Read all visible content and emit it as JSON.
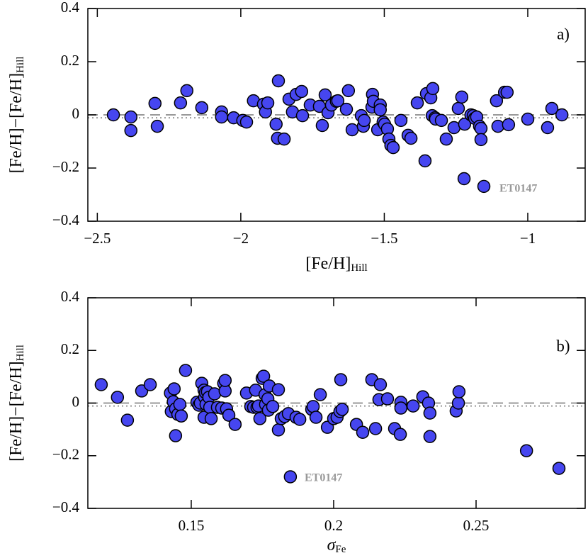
{
  "chart_data": [
    {
      "type": "scatter",
      "panel_label": "a)",
      "annotation": "ET0147",
      "xlabel": {
        "text": "[Fe/H]",
        "sub": "Hill"
      },
      "ylabel": {
        "text": "[Fe/H]−[Fe/H]",
        "sub": "Hill"
      },
      "color": "#4646f0",
      "edgecolor": "#000000",
      "xlim": [
        -2.533,
        -0.8
      ],
      "ylim": [
        -0.4,
        0.4
      ],
      "xticks": [
        {
          "value": -2.5,
          "label": "−2.5"
        },
        {
          "value": -2,
          "label": "−2"
        },
        {
          "value": -1.5,
          "label": "−1.5"
        },
        {
          "value": -1,
          "label": "−1"
        }
      ],
      "yticks": [
        {
          "value": -0.4,
          "label": "−0.4"
        },
        {
          "value": -0.2,
          "label": "−0.2"
        },
        0,
        0.2,
        0.4
      ],
      "hlines": [
        {
          "y": 0,
          "style": "dashed",
          "color": "#999999"
        },
        {
          "y": -0.011,
          "style": "dotted",
          "color": "#999999"
        }
      ],
      "x": [
        -2.444,
        -2.383,
        -2.383,
        -2.299,
        -2.291,
        -2.21,
        -2.188,
        -2.136,
        -2.067,
        -2.067,
        -2.025,
        -1.993,
        -1.98,
        -1.956,
        -1.921,
        -1.914,
        -1.906,
        -1.877,
        -1.872,
        -1.869,
        -1.849,
        -1.832,
        -1.82,
        -1.807,
        -1.788,
        -1.785,
        -1.758,
        -1.726,
        -1.716,
        -1.706,
        -1.696,
        -1.684,
        -1.667,
        -1.662,
        -1.632,
        -1.625,
        -1.612,
        -1.58,
        -1.573,
        -1.57,
        -1.543,
        -1.541,
        -1.538,
        -1.523,
        -1.514,
        -1.514,
        -1.504,
        -1.499,
        -1.489,
        -1.484,
        -1.477,
        -1.469,
        -1.442,
        -1.417,
        -1.407,
        -1.385,
        -1.358,
        -1.353,
        -1.338,
        -1.333,
        -1.331,
        -1.323,
        -1.321,
        -1.301,
        -1.284,
        -1.257,
        -1.242,
        -1.23,
        -1.222,
        -1.22,
        -1.198,
        -1.19,
        -1.185,
        -1.178,
        -1.168,
        -1.163,
        -1.163,
        -1.153,
        -1.109,
        -1.104,
        -1.081,
        -1.072,
        -1.067,
        -1.0,
        -0.931,
        -0.916,
        -0.881
      ],
      "values": [
        0,
        -0.008,
        -0.059,
        0.043,
        -0.043,
        0.045,
        0.091,
        0.027,
        0.011,
        -0.008,
        -0.011,
        -0.021,
        -0.027,
        0.053,
        0.04,
        0.011,
        0.045,
        -0.035,
        -0.088,
        0.128,
        -0.091,
        0.059,
        0.011,
        0.077,
        0.088,
        -0.003,
        0.037,
        0.032,
        -0.04,
        0.075,
        0.008,
        0.037,
        0.051,
        0.053,
        0.021,
        0.091,
        -0.056,
        -0.003,
        -0.043,
        -0.021,
        0.029,
        0.077,
        0.051,
        -0.056,
        0.037,
        0.019,
        -0.027,
        -0.035,
        -0.053,
        -0.091,
        -0.115,
        -0.123,
        -0.021,
        -0.077,
        -0.088,
        0.045,
        -0.173,
        0.08,
        0.064,
        -0.003,
        0.099,
        -0.011,
        -0.016,
        -0.021,
        -0.091,
        -0.048,
        0.024,
        0.067,
        -0.24,
        -0.035,
        0,
        -0.003,
        -0.013,
        -0.008,
        -0.043,
        -0.051,
        -0.093,
        -0.269,
        0.053,
        -0.043,
        0.085,
        0.085,
        -0.037,
        -0.016,
        -0.048,
        0.024,
        0
      ]
    },
    {
      "type": "scatter",
      "panel_label": "b)",
      "annotation": "ET0147",
      "xlabel": {
        "text": "σ",
        "sub": "Fe"
      },
      "ylabel": {
        "text": "[Fe/H]−[Fe/H]",
        "sub": "Hill"
      },
      "color": "#4646f0",
      "edgecolor": "#000000",
      "xlim": [
        0.1137,
        0.2883
      ],
      "ylim": [
        -0.4,
        0.4
      ],
      "xticks": [
        0.15,
        0.2,
        0.25
      ],
      "yticks": [
        {
          "value": -0.4,
          "label": "−0.4"
        },
        {
          "value": -0.2,
          "label": "−0.2"
        },
        0,
        0.2,
        0.4
      ],
      "hlines": [
        {
          "y": 0,
          "style": "dashed",
          "color": "#999999"
        },
        {
          "y": -0.011,
          "style": "dotted",
          "color": "#999999"
        }
      ],
      "x": [
        0.1184,
        0.1241,
        0.1276,
        0.1326,
        0.1356,
        0.1427,
        0.143,
        0.1437,
        0.144,
        0.1445,
        0.1445,
        0.1453,
        0.146,
        0.148,
        0.1465,
        0.152,
        0.1527,
        0.1532,
        0.1537,
        0.1545,
        0.1547,
        0.155,
        0.1545,
        0.1552,
        0.1557,
        0.1562,
        0.1565,
        0.157,
        0.1582,
        0.1592,
        0.1607,
        0.1614,
        0.1619,
        0.1619,
        0.1624,
        0.1632,
        0.1654,
        0.1694,
        0.1709,
        0.1719,
        0.1726,
        0.1731,
        0.1736,
        0.1741,
        0.1749,
        0.1754,
        0.1759,
        0.1761,
        0.1769,
        0.1771,
        0.1774,
        0.1786,
        0.1806,
        0.1806,
        0.1816,
        0.1828,
        0.1841,
        0.1848,
        0.1868,
        0.1881,
        0.1923,
        0.1928,
        0.1938,
        0.1953,
        0.1978,
        0.2,
        0.2012,
        0.2022,
        0.2025,
        0.203,
        0.208,
        0.2102,
        0.2134,
        0.2147,
        0.2159,
        0.2164,
        0.2189,
        0.2214,
        0.2234,
        0.2236,
        0.2236,
        0.2279,
        0.2313,
        0.2333,
        0.2338,
        0.2338,
        0.243,
        0.2438,
        0.244,
        0.2677,
        0.2791
      ],
      "values": [
        0.07,
        0.022,
        -0.065,
        0.046,
        0.07,
        0.038,
        -0.032,
        0.005,
        0.054,
        -0.022,
        -0.124,
        -0.043,
        -0.005,
        0.124,
        -0.049,
        0.003,
        -0.008,
        0,
        0.075,
        0.049,
        0.022,
        0.04,
        -0.054,
        -0.005,
        0.043,
        0.022,
        -0.016,
        -0.059,
        0.035,
        -0.016,
        -0.019,
        0.075,
        0.046,
        0.086,
        -0.022,
        -0.046,
        -0.081,
        0.038,
        -0.013,
        -0.016,
        0.049,
        -0.016,
        -0.011,
        -0.059,
        0.094,
        0.102,
        0.032,
        -0.005,
        0.016,
        -0.027,
        0.065,
        -0.013,
        0.051,
        -0.102,
        -0.059,
        -0.051,
        -0.04,
        -0.28,
        -0.054,
        -0.062,
        -0.024,
        -0.013,
        -0.054,
        0.032,
        -0.092,
        -0.059,
        -0.054,
        -0.032,
        0.089,
        -0.024,
        -0.081,
        -0.111,
        0.089,
        -0.097,
        0.013,
        0.07,
        0.016,
        -0.097,
        -0.119,
        0.003,
        -0.019,
        -0.011,
        0.024,
        0,
        -0.038,
        -0.127,
        -0.03,
        0,
        0.043,
        -0.181,
        -0.248
      ]
    }
  ]
}
